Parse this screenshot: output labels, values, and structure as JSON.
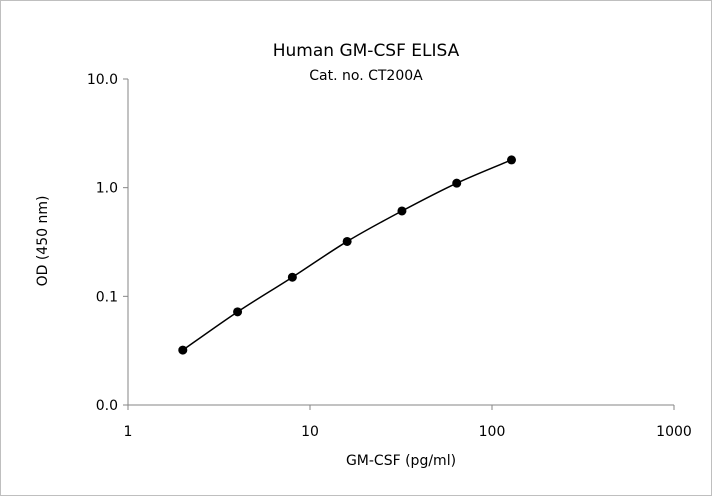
{
  "chart_data": {
    "type": "line",
    "title": "Human GM-CSF ELISA",
    "subtitle": "Cat. no. CT200A",
    "xlabel": "GM-CSF (pg/ml)",
    "ylabel": "OD (450 nm)",
    "x_scale": "log",
    "y_scale": "log",
    "xlim": [
      1,
      1000
    ],
    "ylim": [
      0.01,
      10
    ],
    "x_ticks": [
      1,
      10,
      100,
      1000
    ],
    "x_tick_labels": [
      "1",
      "10",
      "100",
      "1000"
    ],
    "y_ticks": [
      0.01,
      0.1,
      1,
      10
    ],
    "y_tick_labels": [
      "0.0",
      "0.1",
      "1.0",
      "10.0"
    ],
    "grid": false,
    "legend": "none",
    "series": [
      {
        "color": "#000000",
        "x": [
          2,
          4,
          8,
          16,
          32,
          64,
          128
        ],
        "y": [
          0.032,
          0.072,
          0.15,
          0.32,
          0.61,
          1.1,
          1.8
        ]
      }
    ]
  }
}
